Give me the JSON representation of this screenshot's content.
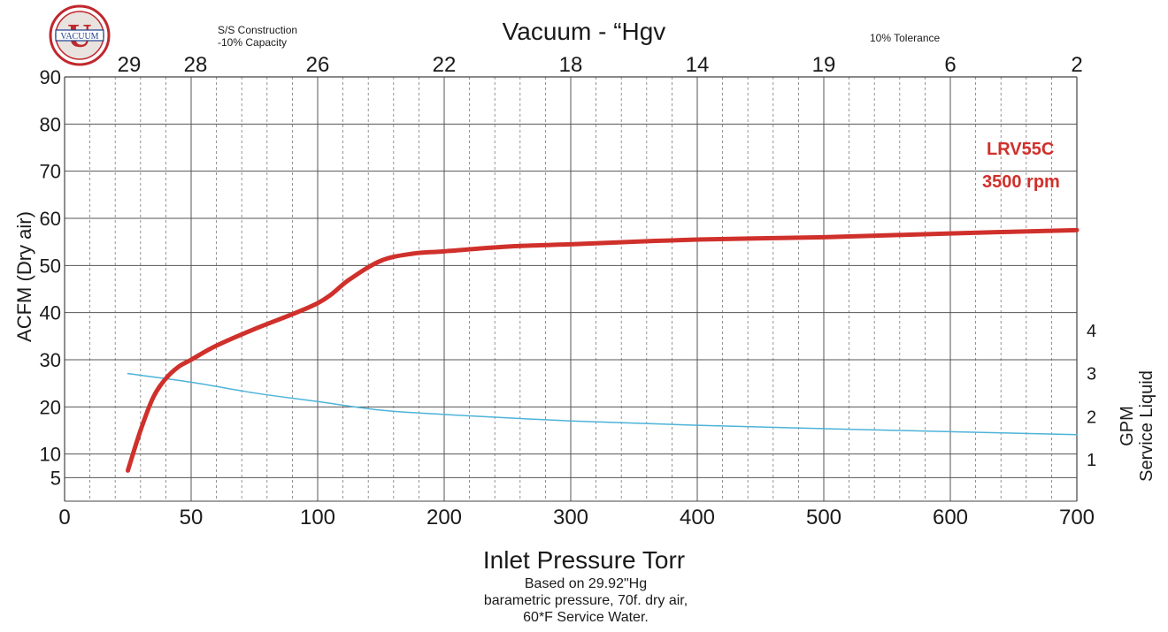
{
  "logo": {
    "text": "VACUUM",
    "ring_color": "#c0282d",
    "icon": "us-vacuum-logo"
  },
  "notes": {
    "construction": "S/S Construction",
    "capacity": "-10% Capacity",
    "tolerance": "10% Tolerance"
  },
  "footnote": {
    "line1": "Based on 29.92\"Hg",
    "line2": "barametric pressure, 70f. dry air,",
    "line3": "60*F Service Water."
  },
  "chart_data": {
    "type": "line",
    "title": "",
    "xlabel": "Inlet Pressure Torr",
    "ylabel": "ACFM (Dry air)",
    "y2label_line1": "GPM",
    "y2label_line2": "Service Liquid",
    "top_axis_label": "Vacuum - “Hgv",
    "xlim": [
      0,
      700
    ],
    "ylim": [
      0,
      90
    ],
    "x_ticks": [
      "0",
      "50",
      "100",
      "200",
      "300",
      "400",
      "500",
      "600",
      "700"
    ],
    "y_ticks": [
      "5",
      "10",
      "20",
      "30",
      "40",
      "50",
      "60",
      "70",
      "80",
      "90"
    ],
    "y2_ticks": [
      "1",
      "2",
      "3",
      "4"
    ],
    "top_ticks": [
      "29",
      "28",
      "26",
      "22",
      "18",
      "14",
      "19",
      "6",
      "2"
    ],
    "grid": true,
    "series": [
      {
        "name": "LRV55C",
        "subtitle": "3500 rpm",
        "color": "#d0302b",
        "axis": "left",
        "x": [
          25,
          30,
          35,
          40,
          45,
          50,
          60,
          75,
          100,
          125,
          150,
          175,
          200,
          250,
          300,
          400,
          500,
          600,
          700
        ],
        "y": [
          6.5,
          15,
          22,
          26,
          28.5,
          30,
          33,
          36.5,
          42,
          47,
          51,
          52.5,
          53,
          54,
          54.5,
          55.5,
          56,
          56.8,
          57.5
        ]
      },
      {
        "name": "",
        "color": "#4db3d9",
        "axis": "right",
        "x": [
          25,
          50,
          75,
          100,
          150,
          200,
          300,
          400,
          500,
          600,
          700
        ],
        "y": [
          3.0,
          2.8,
          2.55,
          2.35,
          2.15,
          2.05,
          1.9,
          1.8,
          1.72,
          1.65,
          1.58
        ]
      }
    ]
  }
}
